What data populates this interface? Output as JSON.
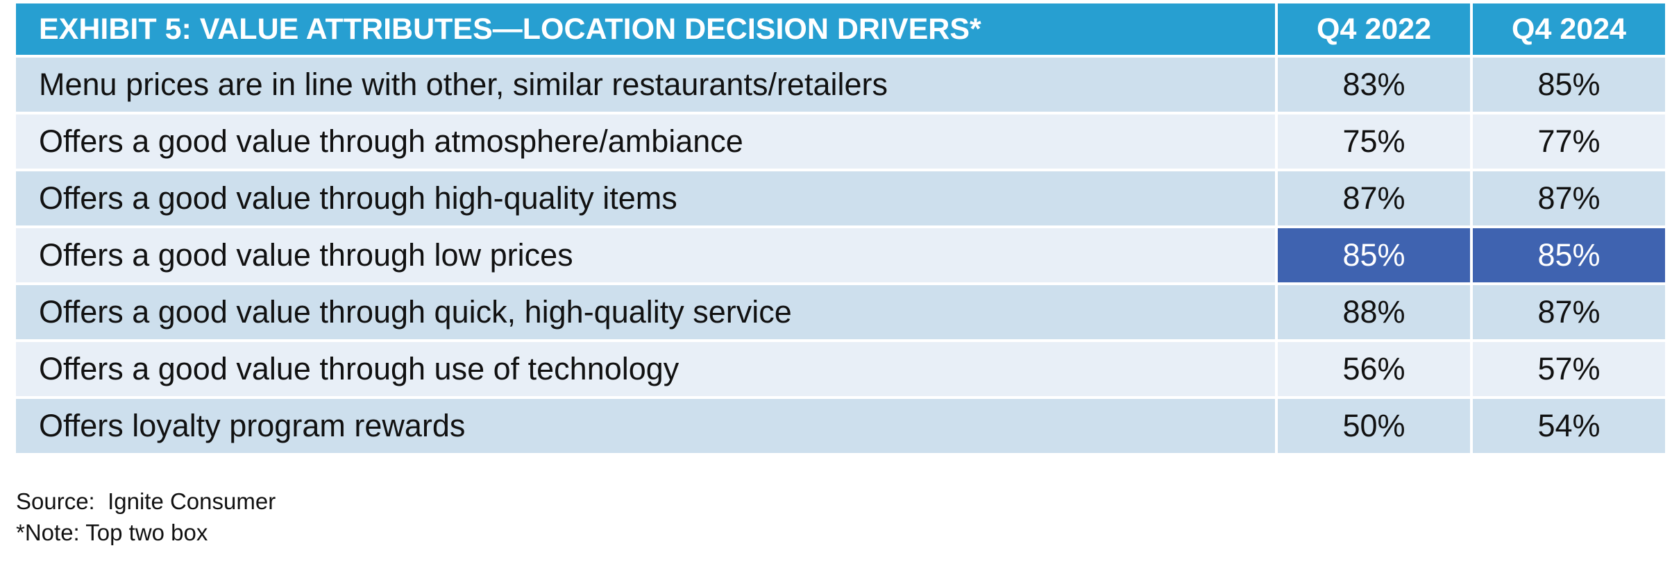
{
  "chart_data": {
    "type": "table",
    "title": "EXHIBIT 5: VALUE ATTRIBUTES—LOCATION DECISION DRIVERS*",
    "columns": [
      "Q4 2022",
      "Q4 2024"
    ],
    "rows": [
      {
        "label": "Menu prices are in line with other, similar restaurants/retailers",
        "values": [
          "83%",
          "85%"
        ],
        "highlight": false
      },
      {
        "label": "Offers a good value through atmosphere/ambiance",
        "values": [
          "75%",
          "77%"
        ],
        "highlight": false
      },
      {
        "label": "Offers a good value through high-quality items",
        "values": [
          "87%",
          "87%"
        ],
        "highlight": false
      },
      {
        "label": "Offers a good value through low prices",
        "values": [
          "85%",
          "85%"
        ],
        "highlight": true
      },
      {
        "label": "Offers a good value through quick, high-quality service",
        "values": [
          "88%",
          "87%"
        ],
        "highlight": false
      },
      {
        "label": "Offers a good value through use of technology",
        "values": [
          "56%",
          "57%"
        ],
        "highlight": false
      },
      {
        "label": "Offers loyalty program rewards",
        "values": [
          "50%",
          "54%"
        ],
        "highlight": false
      }
    ],
    "colors": {
      "header": "#279fd1",
      "row_dark": "#cddfed",
      "row_light": "#e8eff7",
      "highlight": "#3f63b0"
    }
  },
  "footer": {
    "source": "Source:  Ignite Consumer",
    "note": "*Note: Top two box"
  }
}
